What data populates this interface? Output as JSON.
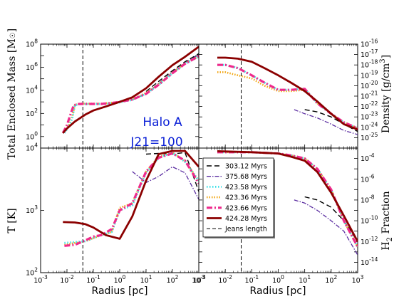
{
  "figure": {
    "annotation_lines": [
      "Halo A",
      "J21=100"
    ],
    "xlabel": "Radius [pc]",
    "x_tick_labels": [
      "10^-3",
      "10^-2",
      "10^-1",
      "10^0",
      "10^1",
      "10^2",
      "10^3"
    ]
  },
  "colors": {
    "303.12 Myrs": "#000000",
    "375.68 Myrs": "#5a2ca0",
    "423.58 Myrs": "#3fe0e8",
    "423.36 Myrs": "#f2a818",
    "423.66 Myrs": "#ee2a8c",
    "424.28 Myrs": "#8b0000",
    "Jeans length": "#000000",
    "annotation": "#0a1fd6"
  },
  "chart_data": [
    {
      "type": "line",
      "panel": "top-left",
      "ylabel": "Total Enclosed Mass [M_☉]",
      "xscale": "log",
      "yscale": "log",
      "xlim": [
        0.001,
        1000
      ],
      "ylim": [
        0.1,
        100000000
      ],
      "y_tick_labels": [
        "10^0",
        "10^2",
        "10^4",
        "10^6",
        "10^8"
      ],
      "jeans_length_pc": 0.04,
      "series": [
        {
          "name": "423.58 Myrs",
          "x": [
            0.008,
            0.012,
            0.016,
            0.02,
            0.03,
            0.06,
            0.2,
            1,
            3,
            10,
            30,
            100,
            300,
            1000
          ],
          "y": [
            2,
            8,
            40,
            500,
            650,
            650,
            650,
            900,
            1500,
            5000,
            30000,
            300000,
            2000000,
            8000000
          ]
        },
        {
          "name": "423.36 Myrs",
          "x": [
            0.008,
            0.012,
            0.016,
            0.02,
            0.03,
            0.06,
            0.2,
            1,
            3,
            10,
            30,
            100,
            300,
            1000
          ],
          "y": [
            3,
            10,
            60,
            550,
            700,
            700,
            700,
            1000,
            1700,
            6000,
            35000,
            350000,
            2200000,
            9000000
          ]
        },
        {
          "name": "423.66 Myrs",
          "x": [
            0.007,
            0.01,
            0.014,
            0.018,
            0.025,
            0.05,
            0.2,
            0.5,
            1,
            3,
            10,
            30,
            100,
            300,
            1000
          ],
          "y": [
            2,
            10,
            100,
            500,
            650,
            660,
            660,
            800,
            1000,
            1600,
            5000,
            30000,
            300000,
            2000000,
            9000000
          ]
        },
        {
          "name": "424.28 Myrs",
          "x": [
            0.007,
            0.01,
            0.02,
            0.05,
            0.1,
            0.3,
            1,
            3,
            10,
            30,
            100,
            300,
            1000
          ],
          "y": [
            2,
            5,
            20,
            80,
            180,
            400,
            1000,
            2500,
            15000,
            150000,
            1500000,
            8000000,
            60000000
          ]
        },
        {
          "name": "375.68 Myrs",
          "x": [
            3,
            10,
            30,
            100,
            300,
            1000
          ],
          "y": [
            1500,
            5000,
            40000,
            400000,
            2500000,
            12000000
          ]
        },
        {
          "name": "303.12 Myrs",
          "x": [
            10,
            30,
            100,
            300,
            1000
          ],
          "y": [
            8000,
            60000,
            500000,
            3000000,
            15000000
          ]
        }
      ]
    },
    {
      "type": "line",
      "panel": "top-right",
      "ylabel": "Density [g/cm^3]",
      "xscale": "log",
      "yscale": "log",
      "xlim": [
        0.001,
        1000
      ],
      "ylim": [
        1e-26,
        1e-16
      ],
      "y_tick_labels": [
        "10^-25",
        "10^-24",
        "10^-23",
        "10^-22",
        "10^-21",
        "10^-20",
        "10^-19",
        "10^-18",
        "10^-17",
        "10^-16"
      ],
      "jeans_length_pc": 0.04,
      "series": [
        {
          "name": "423.58 Myrs",
          "x": [
            0.005,
            0.01,
            0.03,
            0.1,
            0.3,
            1,
            3,
            10,
            30,
            100,
            300,
            1000
          ],
          "y": [
            1e-18,
            1e-18,
            5e-19,
            1e-19,
            2e-20,
            4e-21,
            4e-21,
            5e-21,
            2e-22,
            2e-23,
            3e-24,
            8e-25
          ]
        },
        {
          "name": "423.36 Myrs",
          "x": [
            0.005,
            0.01,
            0.03,
            0.1,
            0.3,
            1,
            3,
            10,
            30,
            100,
            300,
            1000
          ],
          "y": [
            2e-19,
            2e-19,
            1e-19,
            5e-20,
            1e-20,
            3e-21,
            3e-21,
            4e-21,
            2e-22,
            2e-23,
            3e-24,
            8e-25
          ]
        },
        {
          "name": "423.66 Myrs",
          "x": [
            0.005,
            0.01,
            0.03,
            0.1,
            0.3,
            1,
            3,
            10,
            30,
            100,
            300,
            1000
          ],
          "y": [
            1e-18,
            1e-18,
            5e-19,
            1e-19,
            2e-20,
            4e-21,
            4e-21,
            5e-21,
            2e-22,
            2e-23,
            3e-24,
            8e-25
          ]
        },
        {
          "name": "424.28 Myrs",
          "x": [
            0.005,
            0.01,
            0.03,
            0.1,
            0.3,
            1,
            3,
            10,
            30,
            100,
            300,
            1000
          ],
          "y": [
            5e-18,
            5e-18,
            4e-18,
            2e-18,
            5e-19,
            1e-19,
            2e-20,
            3e-21,
            3e-22,
            2e-23,
            2e-24,
            6e-25
          ]
        },
        {
          "name": "375.68 Myrs",
          "x": [
            4,
            10,
            30,
            100,
            300,
            1000
          ],
          "y": [
            5e-23,
            2e-23,
            8e-24,
            2e-24,
            5e-25,
            2e-25
          ]
        },
        {
          "name": "303.12 Myrs",
          "x": [
            10,
            30,
            100,
            300,
            1000
          ],
          "y": [
            5e-23,
            3e-23,
            1e-23,
            2e-24,
            4e-25
          ]
        }
      ]
    },
    {
      "type": "line",
      "panel": "bottom-left",
      "ylabel": "T [K]",
      "xscale": "log",
      "yscale": "log",
      "xlim": [
        0.001,
        1000
      ],
      "ylim": [
        100,
        10000
      ],
      "y_tick_labels": [
        "10^2",
        "10^3",
        "10^4"
      ],
      "jeans_length_pc": 0.04,
      "series": [
        {
          "name": "423.58 Myrs",
          "x": [
            0.008,
            0.02,
            0.05,
            0.2,
            0.5,
            1,
            3,
            10,
            30,
            100,
            300,
            1000
          ],
          "y": [
            300,
            310,
            320,
            400,
            450,
            1000,
            1200,
            4000,
            7000,
            8500,
            6000,
            3000
          ]
        },
        {
          "name": "423.36 Myrs",
          "x": [
            0.008,
            0.02,
            0.05,
            0.2,
            0.5,
            1,
            3,
            10,
            30,
            100,
            300,
            1000
          ],
          "y": [
            280,
            300,
            320,
            400,
            450,
            1100,
            1300,
            4200,
            7200,
            8500,
            6200,
            3000
          ]
        },
        {
          "name": "423.66 Myrs",
          "x": [
            0.008,
            0.02,
            0.05,
            0.1,
            0.2,
            0.5,
            1,
            3,
            10,
            30,
            100,
            300,
            1000
          ],
          "y": [
            270,
            280,
            330,
            380,
            400,
            500,
            1000,
            1300,
            4200,
            7000,
            8200,
            6300,
            2700
          ]
        },
        {
          "name": "424.28 Myrs",
          "x": [
            0.007,
            0.02,
            0.05,
            0.1,
            0.3,
            1,
            3,
            10,
            30,
            100,
            300,
            1000
          ],
          "y": [
            650,
            640,
            600,
            530,
            400,
            350,
            800,
            3000,
            8000,
            9000,
            9000,
            5000
          ]
        },
        {
          "name": "375.68 Myrs",
          "x": [
            3,
            10,
            30,
            100,
            300,
            1000
          ],
          "y": [
            4200,
            2800,
            3500,
            5000,
            4000,
            1500
          ]
        },
        {
          "name": "303.12 Myrs",
          "x": [
            10,
            30,
            100,
            300,
            1000
          ],
          "y": [
            8000,
            8200,
            8000,
            8500,
            2000
          ]
        }
      ]
    },
    {
      "type": "line",
      "panel": "bottom-right",
      "ylabel": "H2 Fraction",
      "xscale": "log",
      "yscale": "log",
      "xlim": [
        0.001,
        1000
      ],
      "ylim": [
        1e-15,
        0.001
      ],
      "y_tick_labels": [
        "10^-14",
        "10^-12",
        "10^-10",
        "10^-8",
        "10^-6",
        "10^-4"
      ],
      "jeans_length_pc": 0.04,
      "series": [
        {
          "name": "423.58 Myrs",
          "x": [
            0.005,
            0.1,
            1,
            3,
            10,
            30,
            100,
            300,
            1000
          ],
          "y": [
            0.0004,
            0.0004,
            0.0003,
            0.0002,
            0.0001,
            1e-05,
            1e-07,
            1e-10,
            3e-13
          ]
        },
        {
          "name": "423.36 Myrs",
          "x": [
            0.005,
            0.1,
            1,
            3,
            10,
            30,
            100,
            300,
            1000
          ],
          "y": [
            0.0004,
            0.0004,
            0.0003,
            0.0002,
            0.0001,
            1e-05,
            1e-07,
            1e-10,
            3e-13
          ]
        },
        {
          "name": "423.66 Myrs",
          "x": [
            0.005,
            0.1,
            1,
            3,
            10,
            30,
            100,
            300,
            1000
          ],
          "y": [
            0.0004,
            0.0004,
            0.0003,
            0.0002,
            0.0001,
            1e-05,
            1e-07,
            1e-10,
            3e-13
          ]
        },
        {
          "name": "424.28 Myrs",
          "x": [
            0.005,
            0.1,
            1,
            3,
            10,
            30,
            100,
            300,
            1000
          ],
          "y": [
            0.0005,
            0.0004,
            0.0003,
            0.00015,
            6e-05,
            5e-06,
            5e-08,
            3e-10,
            1e-12
          ]
        },
        {
          "name": "375.68 Myrs",
          "x": [
            4,
            10,
            30,
            100,
            300,
            1000
          ],
          "y": [
            1e-08,
            5e-09,
            1e-09,
            1e-10,
            1e-11,
            5e-14
          ]
        },
        {
          "name": "303.12 Myrs",
          "x": [
            10,
            30,
            100,
            300,
            1000
          ],
          "y": [
            2e-08,
            1e-08,
            2e-09,
            1e-10,
            1e-12
          ]
        }
      ]
    }
  ],
  "legend": {
    "placement": "bottom-right panel, upper-left",
    "entries": [
      {
        "label": "303.12 Myrs",
        "dash": "7,4",
        "width": 1.4
      },
      {
        "label": "375.68 Myrs",
        "dash": "6,2,1.5,2",
        "width": 1.3
      },
      {
        "label": "423.58 Myrs",
        "dash": "1.5,2.5",
        "width": 2.8
      },
      {
        "label": "423.36 Myrs",
        "dash": "1.5,2",
        "width": 2.6
      },
      {
        "label": "423.66 Myrs",
        "dash": "8,3,2,3",
        "width": 3.2
      },
      {
        "label": "424.28 Myrs",
        "dash": "",
        "width": 2.8
      },
      {
        "label": "Jeans length",
        "dash": "5,3",
        "width": 1.0
      }
    ]
  }
}
